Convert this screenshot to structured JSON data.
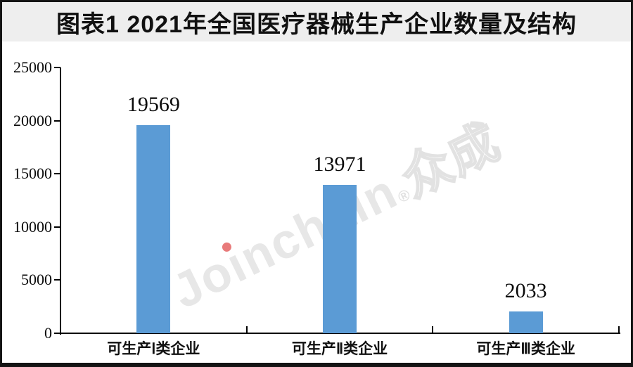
{
  "banner": {
    "title": "图表1 2021年全国医疗器械生产企业数量及结构"
  },
  "watermark": {
    "lead": "Jo",
    "i_char": "ı",
    "tail": "nchain",
    "reg": "®",
    "suffix": "众成",
    "full_text": "Joinchain®众成",
    "text_color": "#e7e7e7",
    "dot_color": "#e87a7a"
  },
  "chart_data": {
    "type": "bar",
    "title": "图表1 2021年全国医疗器械生产企业数量及结构",
    "categories": [
      "可生产Ⅰ类企业",
      "可生产Ⅱ类企业",
      "可生产Ⅲ类企业"
    ],
    "values": [
      19569,
      13971,
      2033
    ],
    "data_labels": [
      "19569",
      "13971",
      "2033"
    ],
    "ylim": [
      0,
      25000
    ],
    "ytick_interval": 5000,
    "ytick_values": [
      25000,
      20000,
      15000,
      10000,
      5000,
      0
    ],
    "ytick_labels": [
      "25000",
      "20000",
      "15000",
      "10000",
      "5000",
      "0"
    ],
    "xlabel": "",
    "ylabel": "",
    "grid": false,
    "legend": "none",
    "bar_color": "#5b9bd5",
    "axis_color": "#000000",
    "banner_bg": "#eeeeee"
  }
}
